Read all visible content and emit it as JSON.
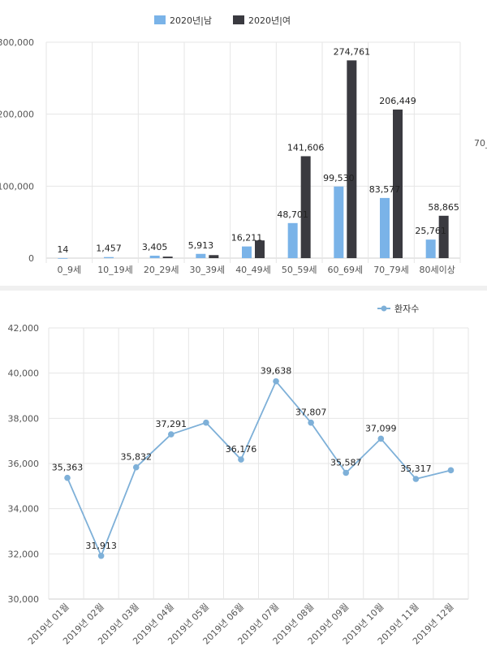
{
  "chart_data": [
    {
      "type": "bar",
      "categories": [
        "0_9세",
        "10_19세",
        "20_29세",
        "30_39세",
        "40_49세",
        "50_59세",
        "60_69세",
        "70_79세",
        "80세이상"
      ],
      "series": [
        {
          "name": "2020년|남",
          "values": [
            14,
            1457,
            3405,
            5913,
            16211,
            48701,
            99530,
            83577,
            25761
          ]
        },
        {
          "name": "2020년|여",
          "values": [
            null,
            null,
            2100,
            4200,
            24600,
            141606,
            274761,
            206449,
            58865
          ]
        }
      ],
      "labels": [
        {
          "series": 0,
          "values": [
            14,
            1457,
            3405,
            5913,
            16211,
            48701,
            99530,
            83577,
            25761
          ]
        },
        {
          "series": 1,
          "values": [
            null,
            null,
            null,
            null,
            null,
            141606,
            274761,
            206449,
            58865
          ]
        }
      ],
      "ylim": [
        0,
        300000
      ],
      "yticks": [
        0,
        100000,
        200000,
        300000
      ],
      "grid": true,
      "legend": "top-center",
      "colors": [
        "#7ab3e8",
        "#3a3a40"
      ],
      "side_text": "70_"
    },
    {
      "type": "line",
      "x": [
        "2019년 01월",
        "2019년 02월",
        "2019년 03월",
        "2019년 04월",
        "2019년 05월",
        "2019년 06월",
        "2019년 07월",
        "2019년 08월",
        "2019년 09월",
        "2019년 10월",
        "2019년 11월",
        "2019년 12월"
      ],
      "series": [
        {
          "name": "환자수",
          "values": [
            35363,
            31913,
            35832,
            37291,
            37807,
            36176,
            39638,
            37807,
            35587,
            37099,
            35317,
            35700
          ]
        }
      ],
      "labels": [
        "35,363",
        "31,913",
        "35,832",
        "37,291",
        null,
        "36,176",
        "39,638",
        "37,807",
        "35,587",
        "37,099",
        "35,317",
        null
      ],
      "ylim": [
        30000,
        42000
      ],
      "yticks": [
        30000,
        32000,
        34000,
        36000,
        38000,
        40000,
        42000
      ],
      "grid": true,
      "legend": "top-right",
      "colors": [
        "#7eb0d8"
      ]
    }
  ]
}
